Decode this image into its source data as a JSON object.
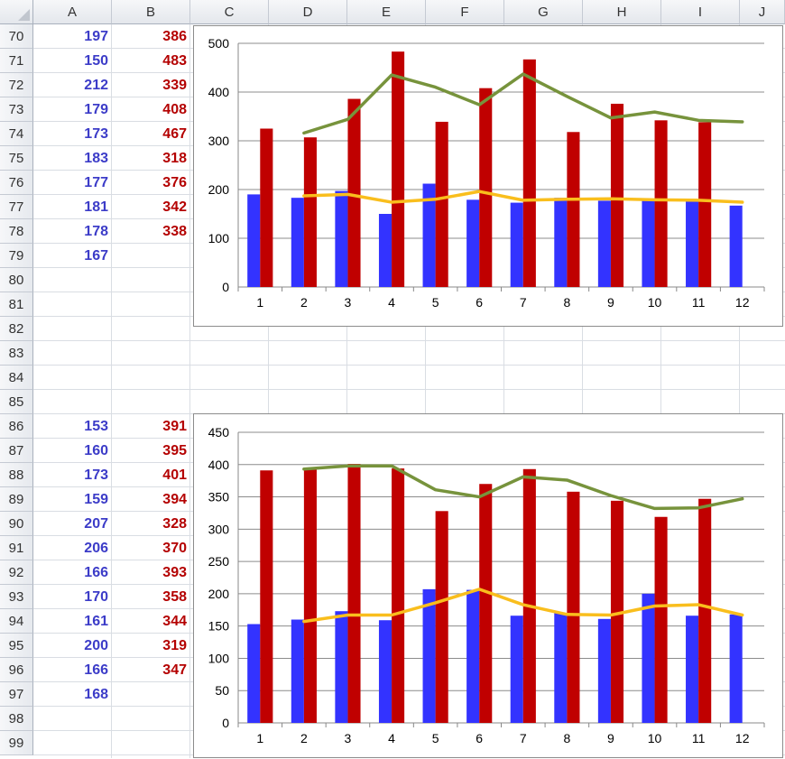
{
  "spreadsheet": {
    "columns": [
      "A",
      "B",
      "C",
      "D",
      "E",
      "F",
      "G",
      "H",
      "I",
      "J"
    ],
    "rows": [
      "70",
      "71",
      "72",
      "73",
      "74",
      "75",
      "76",
      "77",
      "78",
      "79",
      "80",
      "81",
      "82",
      "83",
      "84",
      "85",
      "86",
      "87",
      "88",
      "89",
      "90",
      "91",
      "92",
      "93",
      "94",
      "95",
      "96",
      "97",
      "98",
      "99"
    ],
    "cells": [
      {
        "row": "70",
        "a": "197",
        "b": "386"
      },
      {
        "row": "71",
        "a": "150",
        "b": "483"
      },
      {
        "row": "72",
        "a": "212",
        "b": "339"
      },
      {
        "row": "73",
        "a": "179",
        "b": "408"
      },
      {
        "row": "74",
        "a": "173",
        "b": "467"
      },
      {
        "row": "75",
        "a": "183",
        "b": "318"
      },
      {
        "row": "76",
        "a": "177",
        "b": "376"
      },
      {
        "row": "77",
        "a": "181",
        "b": "342"
      },
      {
        "row": "78",
        "a": "178",
        "b": "338"
      },
      {
        "row": "79",
        "a": "167",
        "b": ""
      },
      {
        "row": "86",
        "a": "153",
        "b": "391"
      },
      {
        "row": "87",
        "a": "160",
        "b": "395"
      },
      {
        "row": "88",
        "a": "173",
        "b": "401"
      },
      {
        "row": "89",
        "a": "159",
        "b": "394"
      },
      {
        "row": "90",
        "a": "207",
        "b": "328"
      },
      {
        "row": "91",
        "a": "206",
        "b": "370"
      },
      {
        "row": "92",
        "a": "166",
        "b": "393"
      },
      {
        "row": "93",
        "a": "170",
        "b": "358"
      },
      {
        "row": "94",
        "a": "161",
        "b": "344"
      },
      {
        "row": "95",
        "a": "200",
        "b": "319"
      },
      {
        "row": "96",
        "a": "166",
        "b": "347"
      },
      {
        "row": "97",
        "a": "168",
        "b": ""
      }
    ]
  },
  "colors": {
    "blue_series": "#3333ff",
    "red_series": "#c00000",
    "green_line": "#77933c",
    "yellow_line": "#f9be1d",
    "cell_blue_text": "#3c3cc8",
    "cell_red_text": "#b40000"
  },
  "chart_data": [
    {
      "type": "bar",
      "categories": [
        "1",
        "2",
        "3",
        "4",
        "5",
        "6",
        "7",
        "8",
        "9",
        "10",
        "11",
        "12"
      ],
      "ylim": [
        0,
        500
      ],
      "yticks": [
        "0",
        "100",
        "200",
        "300",
        "400",
        "500"
      ],
      "grid": true,
      "legend": "none",
      "series": [
        {
          "type": "bar",
          "color": "#3333ff",
          "values": [
            190,
            183,
            197,
            150,
            212,
            179,
            173,
            183,
            177,
            181,
            178,
            167
          ]
        },
        {
          "type": "bar",
          "color": "#c00000",
          "values": [
            325,
            307,
            386,
            483,
            339,
            408,
            467,
            318,
            376,
            342,
            338,
            null
          ]
        },
        {
          "type": "line",
          "color": "#77933c",
          "values": [
            null,
            316,
            344,
            435,
            410,
            374,
            437,
            391,
            347,
            359,
            342,
            339
          ]
        },
        {
          "type": "line",
          "color": "#f9be1d",
          "values": [
            null,
            187,
            190,
            174,
            180,
            196,
            178,
            180,
            181,
            179,
            178,
            174
          ]
        }
      ]
    },
    {
      "type": "bar",
      "categories": [
        "1",
        "2",
        "3",
        "4",
        "5",
        "6",
        "7",
        "8",
        "9",
        "10",
        "11",
        "12"
      ],
      "ylim": [
        0,
        450
      ],
      "yticks": [
        "0",
        "50",
        "100",
        "150",
        "200",
        "250",
        "300",
        "350",
        "400",
        "450"
      ],
      "grid": true,
      "legend": "none",
      "series": [
        {
          "type": "bar",
          "color": "#3333ff",
          "values": [
            153,
            160,
            173,
            159,
            207,
            206,
            166,
            170,
            161,
            200,
            166,
            168
          ]
        },
        {
          "type": "bar",
          "color": "#c00000",
          "values": [
            391,
            395,
            401,
            394,
            328,
            370,
            393,
            358,
            344,
            319,
            347,
            null
          ]
        },
        {
          "type": "line",
          "color": "#77933c",
          "values": [
            null,
            393,
            398,
            398,
            361,
            350,
            381,
            376,
            352,
            332,
            333,
            347
          ]
        },
        {
          "type": "line",
          "color": "#f9be1d",
          "values": [
            null,
            157,
            167,
            167,
            186,
            207,
            183,
            168,
            167,
            181,
            183,
            167
          ]
        }
      ]
    }
  ]
}
